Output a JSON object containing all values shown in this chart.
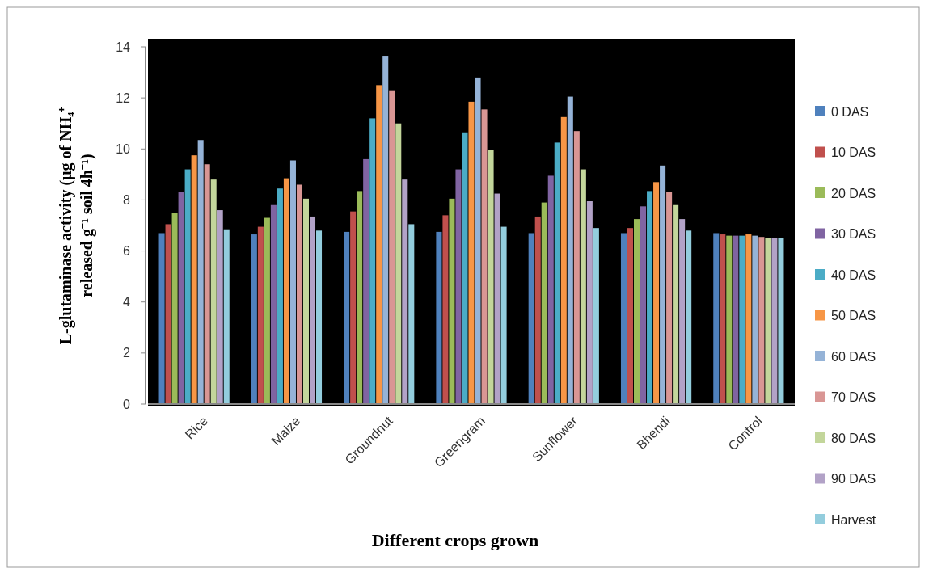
{
  "chart_data": {
    "type": "bar",
    "xlabel": "Different crops grown",
    "ylabel": "L-glutaminase activity  (µg of NH₄⁺ released g⁻¹ soil 4h⁻¹)",
    "categories": [
      "Rice",
      "Maize",
      "Groundnut",
      "Greengram",
      "Sunflower",
      "Bhendi",
      "Control"
    ],
    "ylim": [
      0,
      14
    ],
    "yticks": [
      0,
      2,
      4,
      6,
      8,
      10,
      12,
      14
    ],
    "grid": false,
    "legend": "right",
    "series": [
      {
        "name": "0 DAS",
        "color": "#4f81bd",
        "values": [
          6.7,
          6.65,
          6.75,
          6.75,
          6.7,
          6.7,
          6.7
        ]
      },
      {
        "name": "10 DAS",
        "color": "#c0504d",
        "values": [
          7.05,
          6.95,
          7.55,
          7.4,
          7.35,
          6.9,
          6.65
        ]
      },
      {
        "name": "20 DAS",
        "color": "#9bbb59",
        "values": [
          7.5,
          7.3,
          8.35,
          8.05,
          7.9,
          7.25,
          6.6
        ]
      },
      {
        "name": "30 DAS",
        "color": "#8064a2",
        "values": [
          8.3,
          7.8,
          9.6,
          9.2,
          8.95,
          7.75,
          6.6
        ]
      },
      {
        "name": "40 DAS",
        "color": "#4bacc6",
        "values": [
          9.2,
          8.45,
          11.2,
          10.65,
          10.25,
          8.35,
          6.6
        ]
      },
      {
        "name": "50 DAS",
        "color": "#f79646",
        "values": [
          9.75,
          8.85,
          12.5,
          11.85,
          11.25,
          8.7,
          6.65
        ]
      },
      {
        "name": "60 DAS",
        "color": "#95b3d7",
        "values": [
          10.35,
          9.55,
          13.65,
          12.8,
          12.05,
          9.35,
          6.6
        ]
      },
      {
        "name": "70 DAS",
        "color": "#d99694",
        "values": [
          9.4,
          8.6,
          12.3,
          11.55,
          10.7,
          8.3,
          6.55
        ]
      },
      {
        "name": "80 DAS",
        "color": "#c3d69b",
        "values": [
          8.8,
          8.05,
          11.0,
          9.95,
          9.2,
          7.8,
          6.5
        ]
      },
      {
        "name": "90 DAS",
        "color": "#b2a2c7",
        "values": [
          7.6,
          7.35,
          8.8,
          8.25,
          7.95,
          7.25,
          6.5
        ]
      },
      {
        "name": "Harvest",
        "color": "#93cddd",
        "values": [
          6.85,
          6.8,
          7.05,
          6.95,
          6.9,
          6.8,
          6.5
        ]
      }
    ]
  }
}
